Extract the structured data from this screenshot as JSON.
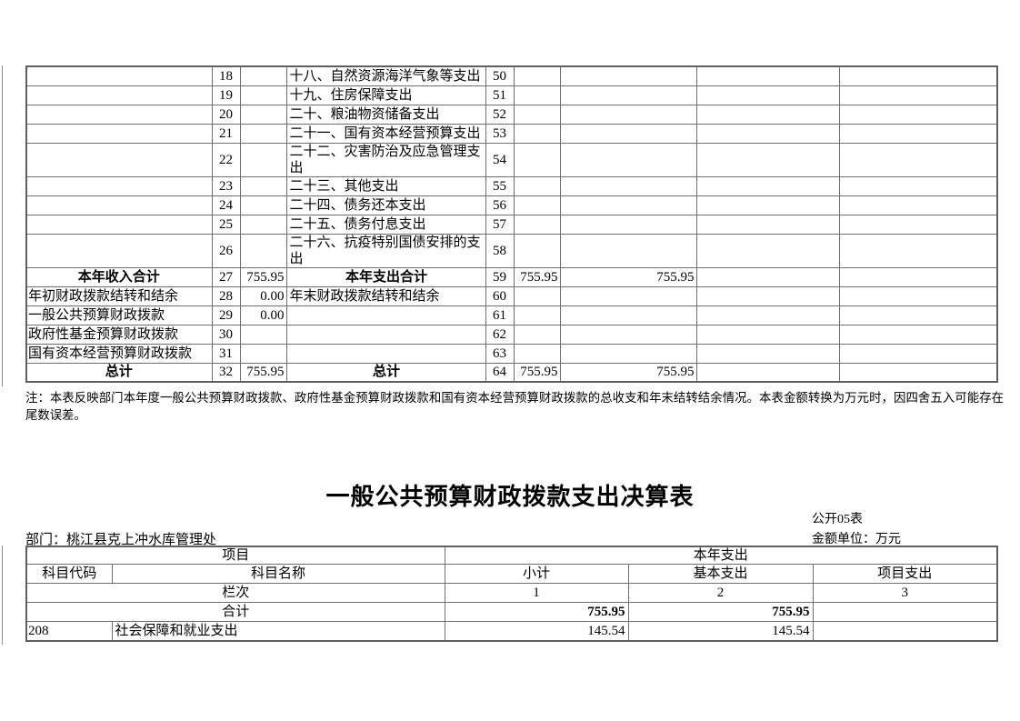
{
  "top_table": {
    "rows": [
      {
        "c": [
          "",
          "18",
          "",
          "十八、自然资源海洋气象等支出",
          "50",
          "",
          "",
          "",
          ""
        ]
      },
      {
        "c": [
          "",
          "19",
          "",
          "十九、住房保障支出",
          "51",
          "",
          "",
          "",
          ""
        ]
      },
      {
        "c": [
          "",
          "20",
          "",
          "二十、粮油物资储备支出",
          "52",
          "",
          "",
          "",
          ""
        ]
      },
      {
        "c": [
          "",
          "21",
          "",
          "二十一、国有资本经营预算支出",
          "53",
          "",
          "",
          "",
          ""
        ]
      },
      {
        "c": [
          "",
          "22",
          "",
          "二十二、灾害防治及应急管理支出",
          "54",
          "",
          "",
          "",
          ""
        ]
      },
      {
        "c": [
          "",
          "23",
          "",
          "二十三、其他支出",
          "55",
          "",
          "",
          "",
          ""
        ]
      },
      {
        "c": [
          "",
          "24",
          "",
          "二十四、债务还本支出",
          "56",
          "",
          "",
          "",
          ""
        ]
      },
      {
        "c": [
          "",
          "25",
          "",
          "二十五、债务付息支出",
          "57",
          "",
          "",
          "",
          ""
        ]
      },
      {
        "c": [
          "",
          "26",
          "",
          "二十六、抗疫特别国债安排的支出",
          "58",
          "",
          "",
          "",
          ""
        ]
      },
      {
        "c": [
          "本年收入合计",
          "27",
          "755.95",
          "本年支出合计",
          "59",
          "755.95",
          "755.95",
          "",
          ""
        ],
        "total": true
      },
      {
        "c": [
          "年初财政拨款结转和结余",
          "28",
          "0.00",
          "年末财政拨款结转和结余",
          "60",
          "",
          "",
          "",
          ""
        ]
      },
      {
        "c": [
          "一般公共预算财政拨款",
          "29",
          "0.00",
          "",
          "61",
          "",
          "",
          "",
          ""
        ]
      },
      {
        "c": [
          "政府性基金预算财政拨款",
          "30",
          "",
          "",
          "62",
          "",
          "",
          "",
          ""
        ]
      },
      {
        "c": [
          "国有资本经营预算财政拨款",
          "31",
          "",
          "",
          "63",
          "",
          "",
          "",
          ""
        ]
      },
      {
        "c": [
          "总计",
          "32",
          "755.95",
          "总计",
          "64",
          "755.95",
          "755.95",
          "",
          ""
        ],
        "total": true
      }
    ]
  },
  "note": "注：本表反映部门本年度一般公共预算财政拨款、政府性基金预算财政拨款和国有资本经营预算财政拨款的总收支和年末结转结余情况。本表金额转换为万元时，因四舍五入可能存在尾数误差。",
  "bottom_table": {
    "title": "一般公共预算财政拨款支出决算表",
    "table_code": "公开05表",
    "department": "部门：桃江县克上冲水库管理处",
    "unit": "金额单位：万元",
    "header": {
      "project": "项目",
      "year_expense": "本年支出",
      "subject_code": "科目代码",
      "subject_name": "科目名称",
      "subtotal": "小计",
      "basic_expense": "基本支出",
      "project_expense": "项目支出",
      "column_row_label": "栏次",
      "col1": "1",
      "col2": "2",
      "col3": "3"
    },
    "rows": [
      {
        "name": "合计",
        "span": true,
        "subtotal": "755.95",
        "basic": "755.95",
        "project": "",
        "bold_values": true
      },
      {
        "code": "208",
        "name": "社会保障和就业支出",
        "subtotal": "145.54",
        "basic": "145.54",
        "project": "",
        "bold_values": false
      }
    ]
  },
  "colors": {
    "border": "#6e6e6e",
    "text": "#000000",
    "background": "#ffffff"
  }
}
